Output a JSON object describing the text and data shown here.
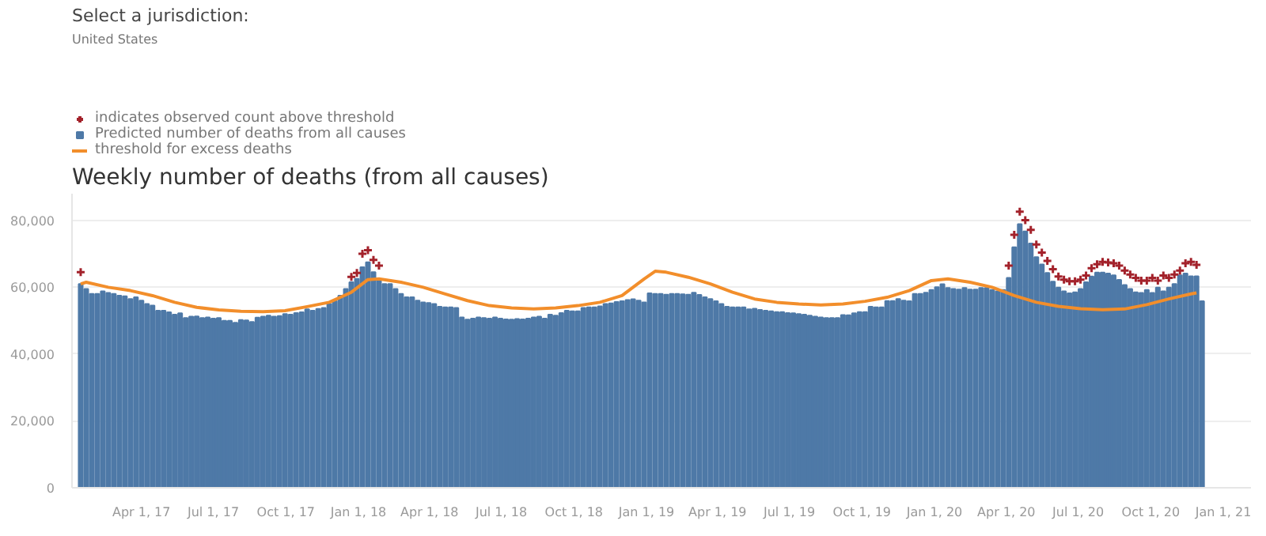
{
  "chart_data": {
    "type": "bar",
    "title": "Weekly number of deaths (from all causes)",
    "annotations": [
      "Select a jurisdiction:",
      "United States"
    ],
    "x": [
      "2017-01-14",
      "2017-01-21",
      "2017-01-28",
      "2017-02-04",
      "2017-02-11",
      "2017-02-18",
      "2017-02-25",
      "2017-03-04",
      "2017-03-11",
      "2017-03-18",
      "2017-03-25",
      "2017-04-01",
      "2017-04-08",
      "2017-04-15",
      "2017-04-22",
      "2017-04-29",
      "2017-05-06",
      "2017-05-13",
      "2017-05-20",
      "2017-05-27",
      "2017-06-03",
      "2017-06-10",
      "2017-06-17",
      "2017-06-24",
      "2017-07-01",
      "2017-07-08",
      "2017-07-15",
      "2017-07-22",
      "2017-07-29",
      "2017-08-05",
      "2017-08-12",
      "2017-08-19",
      "2017-08-26",
      "2017-09-02",
      "2017-09-09",
      "2017-09-16",
      "2017-09-23",
      "2017-09-30",
      "2017-10-07",
      "2017-10-14",
      "2017-10-21",
      "2017-10-28",
      "2017-11-04",
      "2017-11-11",
      "2017-11-18",
      "2017-11-25",
      "2017-12-02",
      "2017-12-09",
      "2017-12-16",
      "2017-12-23",
      "2017-12-30",
      "2018-01-06",
      "2018-01-13",
      "2018-01-20",
      "2018-01-27",
      "2018-02-03",
      "2018-02-10",
      "2018-02-17",
      "2018-02-24",
      "2018-03-03",
      "2018-03-10",
      "2018-03-17",
      "2018-03-24",
      "2018-03-31",
      "2018-04-07",
      "2018-04-14",
      "2018-04-21",
      "2018-04-28",
      "2018-05-05",
      "2018-05-12",
      "2018-05-19",
      "2018-05-26",
      "2018-06-02",
      "2018-06-09",
      "2018-06-16",
      "2018-06-23",
      "2018-06-30",
      "2018-07-07",
      "2018-07-14",
      "2018-07-21",
      "2018-07-28",
      "2018-08-04",
      "2018-08-11",
      "2018-08-18",
      "2018-08-25",
      "2018-09-01",
      "2018-09-08",
      "2018-09-15",
      "2018-09-22",
      "2018-09-29",
      "2018-10-06",
      "2018-10-13",
      "2018-10-20",
      "2018-10-27",
      "2018-11-03",
      "2018-11-10",
      "2018-11-17",
      "2018-11-24",
      "2018-12-01",
      "2018-12-08",
      "2018-12-15",
      "2018-12-22",
      "2018-12-29",
      "2019-01-05",
      "2019-01-12",
      "2019-01-19",
      "2019-01-26",
      "2019-02-02",
      "2019-02-09",
      "2019-02-16",
      "2019-02-23",
      "2019-03-02",
      "2019-03-09",
      "2019-03-16",
      "2019-03-23",
      "2019-03-30",
      "2019-04-06",
      "2019-04-13",
      "2019-04-20",
      "2019-04-27",
      "2019-05-04",
      "2019-05-11",
      "2019-05-18",
      "2019-05-25",
      "2019-06-01",
      "2019-06-08",
      "2019-06-15",
      "2019-06-22",
      "2019-06-29",
      "2019-07-06",
      "2019-07-13",
      "2019-07-20",
      "2019-07-27",
      "2019-08-03",
      "2019-08-10",
      "2019-08-17",
      "2019-08-24",
      "2019-08-31",
      "2019-09-07",
      "2019-09-14",
      "2019-09-21",
      "2019-09-28",
      "2019-10-05",
      "2019-10-12",
      "2019-10-19",
      "2019-10-26",
      "2019-11-02",
      "2019-11-09",
      "2019-11-16",
      "2019-11-23",
      "2019-11-30",
      "2019-12-07",
      "2019-12-14",
      "2019-12-21",
      "2019-12-28",
      "2020-01-04",
      "2020-01-11",
      "2020-01-18",
      "2020-01-25",
      "2020-02-01",
      "2020-02-08",
      "2020-02-15",
      "2020-02-22",
      "2020-02-29",
      "2020-03-07",
      "2020-03-14",
      "2020-03-21",
      "2020-03-28",
      "2020-04-04",
      "2020-04-11",
      "2020-04-18",
      "2020-04-25",
      "2020-05-02",
      "2020-05-09",
      "2020-05-16",
      "2020-05-23",
      "2020-05-30",
      "2020-06-06",
      "2020-06-13",
      "2020-06-20",
      "2020-06-27",
      "2020-07-04",
      "2020-07-11",
      "2020-07-18",
      "2020-07-25",
      "2020-08-01",
      "2020-08-08",
      "2020-08-15",
      "2020-08-22",
      "2020-08-29",
      "2020-09-05",
      "2020-09-12",
      "2020-09-19",
      "2020-09-26",
      "2020-10-03",
      "2020-10-10",
      "2020-10-17",
      "2020-10-24",
      "2020-10-31",
      "2020-11-07",
      "2020-11-14",
      "2020-11-21",
      "2020-11-28",
      "2020-12-05"
    ],
    "series": [
      {
        "name": "Predicted number of deaths from all causes",
        "color": "#4e79a7",
        "values": [
          61000,
          59500,
          58000,
          58000,
          58800,
          58300,
          58000,
          57500,
          57300,
          56500,
          57000,
          56000,
          55000,
          54500,
          53000,
          53000,
          52500,
          51800,
          52200,
          50800,
          51200,
          51300,
          50800,
          51000,
          50600,
          50800,
          50000,
          50000,
          49400,
          50200,
          50100,
          49600,
          50900,
          51200,
          51500,
          51200,
          51400,
          52000,
          51800,
          52300,
          52500,
          53400,
          53000,
          53500,
          53800,
          55000,
          55800,
          57500,
          59500,
          61500,
          62500,
          66000,
          67500,
          64500,
          62000,
          61000,
          61000,
          59500,
          58000,
          57000,
          57000,
          56000,
          55500,
          55300,
          55000,
          54200,
          54000,
          54000,
          53800,
          51000,
          50300,
          50600,
          51000,
          50800,
          50600,
          51000,
          50600,
          50400,
          50300,
          50500,
          50400,
          50600,
          51000,
          51200,
          50600,
          51800,
          51500,
          52300,
          53000,
          52800,
          52800,
          53800,
          54000,
          54000,
          54300,
          55000,
          55200,
          55600,
          55800,
          56200,
          56400,
          56000,
          55500,
          58200,
          58000,
          58000,
          57800,
          58000,
          58000,
          57900,
          57800,
          58400,
          57700,
          57000,
          56500,
          55800,
          55000,
          54200,
          54000,
          54000,
          54000,
          53400,
          53600,
          53200,
          53000,
          52800,
          52600,
          52600,
          52300,
          52200,
          52000,
          51800,
          51500,
          51200,
          51000,
          50800,
          50800,
          50800,
          51700,
          51600,
          52200,
          52600,
          52600,
          54200,
          54000,
          54000,
          55900,
          55900,
          56500,
          56000,
          55800,
          58000,
          58000,
          58400,
          59200,
          60000,
          60900,
          59800,
          59500,
          59300,
          59800,
          59300,
          59300,
          59800,
          59800,
          59200,
          58800,
          59200,
          62800,
          72000,
          78900,
          76700,
          73100,
          69000,
          66800,
          64300,
          61700,
          59900,
          58800,
          58200,
          58500,
          59500,
          61500,
          63200,
          64400,
          64400,
          64100,
          63600,
          62200,
          60700,
          59500,
          58500,
          58300,
          59200,
          58300,
          59900,
          58800,
          59900,
          61000,
          63600,
          64100,
          63300,
          63300,
          55800
        ]
      },
      {
        "type": "line",
        "name": "threshold for excess deaths",
        "color": "#f28e2b",
        "line_style": "solid",
        "x": [
          "2017-01-14",
          "2017-01-21",
          "2017-02-18",
          "2017-03-18",
          "2017-04-15",
          "2017-05-13",
          "2017-06-10",
          "2017-07-08",
          "2017-08-05",
          "2017-09-02",
          "2017-09-30",
          "2017-10-28",
          "2017-11-25",
          "2017-12-23",
          "2018-01-13",
          "2018-01-27",
          "2018-02-24",
          "2018-03-24",
          "2018-04-21",
          "2018-05-19",
          "2018-06-16",
          "2018-07-14",
          "2018-08-11",
          "2018-09-08",
          "2018-10-06",
          "2018-11-03",
          "2018-12-01",
          "2018-12-29",
          "2019-01-12",
          "2019-01-26",
          "2019-02-23",
          "2019-03-23",
          "2019-04-20",
          "2019-05-18",
          "2019-06-15",
          "2019-07-13",
          "2019-08-10",
          "2019-09-07",
          "2019-10-05",
          "2019-11-02",
          "2019-11-30",
          "2019-12-28",
          "2020-01-18",
          "2020-02-15",
          "2020-03-14",
          "2020-04-11",
          "2020-05-09",
          "2020-06-06",
          "2020-07-04",
          "2020-08-01",
          "2020-08-29",
          "2020-09-26",
          "2020-10-24",
          "2020-11-21",
          "2020-11-28"
        ],
        "values": [
          61000,
          61500,
          60000,
          59000,
          57500,
          55500,
          54000,
          53200,
          52800,
          52700,
          53000,
          54200,
          55500,
          58500,
          62300,
          62500,
          61500,
          60000,
          58000,
          56000,
          54500,
          53800,
          53500,
          53800,
          54500,
          55500,
          57500,
          62500,
          64800,
          64500,
          63000,
          61000,
          58500,
          56500,
          55500,
          55000,
          54700,
          55000,
          55800,
          57000,
          59000,
          62000,
          62500,
          61500,
          60000,
          57500,
          55500,
          54300,
          53600,
          53300,
          53500,
          54800,
          56500,
          58000,
          58300
        ]
      },
      {
        "type": "scatter",
        "name": "indicates observed count above threshold",
        "color": "#a3222b",
        "marker": "cross",
        "x": [
          "2017-01-14",
          "2017-12-23",
          "2017-12-30",
          "2018-01-06",
          "2018-01-13",
          "2018-01-20",
          "2018-01-27",
          "2020-04-04",
          "2020-04-11",
          "2020-04-18",
          "2020-04-25",
          "2020-05-02",
          "2020-05-09",
          "2020-05-16",
          "2020-05-23",
          "2020-05-30",
          "2020-06-06",
          "2020-06-13",
          "2020-06-20",
          "2020-06-27",
          "2020-07-04",
          "2020-07-11",
          "2020-07-18",
          "2020-07-25",
          "2020-08-01",
          "2020-08-08",
          "2020-08-15",
          "2020-08-22",
          "2020-08-29",
          "2020-09-05",
          "2020-09-12",
          "2020-09-19",
          "2020-09-26",
          "2020-10-03",
          "2020-10-10",
          "2020-10-17",
          "2020-10-24",
          "2020-10-31",
          "2020-11-07",
          "2020-11-14",
          "2020-11-21",
          "2020-11-28"
        ],
        "values": [
          64500,
          63100,
          64300,
          70000,
          71100,
          68200,
          66500,
          66500,
          75700,
          82600,
          80100,
          77200,
          72800,
          70400,
          67900,
          65400,
          63200,
          62300,
          61800,
          61800,
          62300,
          63500,
          65700,
          66900,
          67600,
          67400,
          67200,
          66500,
          65000,
          63800,
          62800,
          62000,
          62000,
          62800,
          62000,
          63500,
          62800,
          63800,
          65000,
          67200,
          67600,
          66700
        ]
      }
    ],
    "xlim": [
      "2017-01-03",
      "2021-02-05"
    ],
    "xticks": [
      {
        "value": "2017-04-01",
        "label": "Apr 1, 17"
      },
      {
        "value": "2017-07-01",
        "label": "Jul 1, 17"
      },
      {
        "value": "2017-10-01",
        "label": "Oct 1, 17"
      },
      {
        "value": "2018-01-01",
        "label": "Jan 1, 18"
      },
      {
        "value": "2018-04-01",
        "label": "Apr 1, 18"
      },
      {
        "value": "2018-07-01",
        "label": "Jul 1, 18"
      },
      {
        "value": "2018-10-01",
        "label": "Oct 1, 18"
      },
      {
        "value": "2019-01-01",
        "label": "Jan 1, 19"
      },
      {
        "value": "2019-04-01",
        "label": "Apr 1, 19"
      },
      {
        "value": "2019-07-01",
        "label": "Jul 1, 19"
      },
      {
        "value": "2019-10-01",
        "label": "Oct 1, 19"
      },
      {
        "value": "2020-01-01",
        "label": "Jan 1, 20"
      },
      {
        "value": "2020-04-01",
        "label": "Apr 1, 20"
      },
      {
        "value": "2020-07-01",
        "label": "Jul 1, 20"
      },
      {
        "value": "2020-10-01",
        "label": "Oct 1, 20"
      },
      {
        "value": "2021-01-01",
        "label": "Jan 1, 21"
      }
    ],
    "ylim": [
      0,
      88000
    ],
    "yticks": [
      0,
      {
        "value": 20000,
        "label": "20,000"
      },
      {
        "value": 40000,
        "label": "40,000"
      },
      {
        "value": 60000,
        "label": "60,000"
      },
      {
        "value": 80000,
        "label": "80,000"
      }
    ],
    "grid": "y",
    "legend": "top left"
  }
}
